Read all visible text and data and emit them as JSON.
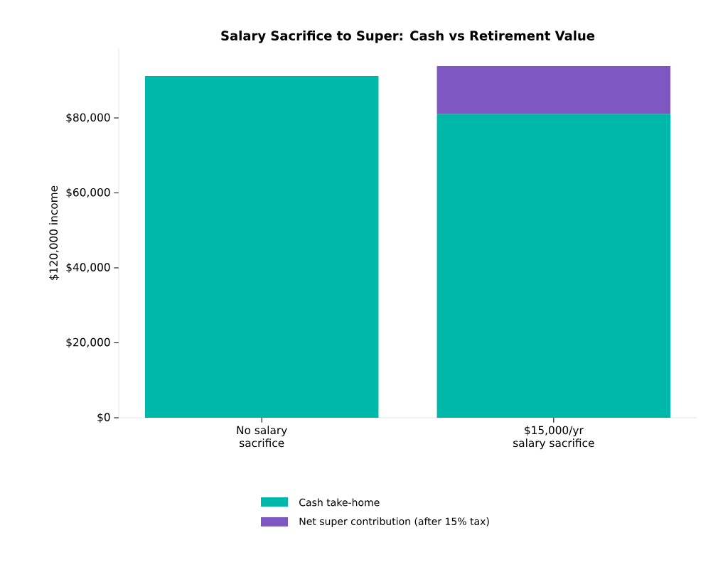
{
  "chart_data": {
    "type": "bar",
    "title": "Salary Sacrifice to Super: Cash vs Retirement Value",
    "ylabel": "$120,000 income",
    "categories": [
      "No salary\nsacrifice",
      "$15,000/yr\nsalary sacrifice"
    ],
    "series": [
      {
        "name": "Cash take-home",
        "color": "#00b8a9",
        "values": [
          91200,
          81100
        ]
      },
      {
        "name": "Net super contribution (after 15% tax)",
        "color": "#7e57c2",
        "values": [
          null,
          12750
        ]
      }
    ],
    "stacked": true,
    "ylim": [
      0,
      98600
    ],
    "yticks": [
      {
        "value": 0,
        "label": "$0"
      },
      {
        "value": 20000,
        "label": "$20,000"
      },
      {
        "value": 40000,
        "label": "$40,000"
      },
      {
        "value": 60000,
        "label": "$60,000"
      },
      {
        "value": 80000,
        "label": "$80,000"
      }
    ],
    "grid": false,
    "legend": "bottom"
  }
}
